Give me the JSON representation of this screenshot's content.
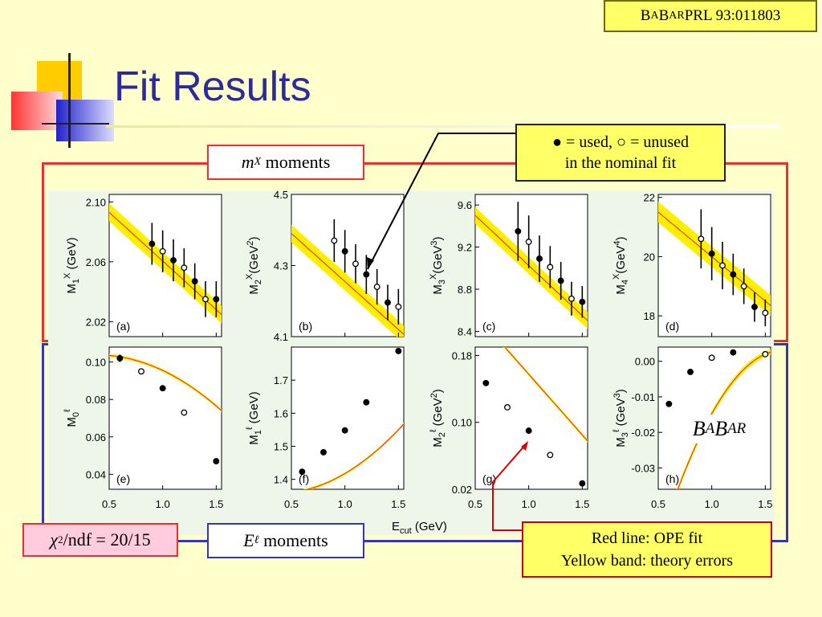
{
  "header": {
    "ref_pre": "B",
    "ref_sc1": "A",
    "ref_mid": "B",
    "ref_sc2": "AR",
    "ref_post": " PRL 93:011803",
    "title": "Fit Results"
  },
  "boxes": {
    "mx_label_var": "m",
    "mx_label_sub": "X",
    "mx_label_text": " moments",
    "el_label_var": "E",
    "el_label_sub": "ℓ",
    "el_label_text": " moments",
    "chi2_sym": "χ",
    "chi2_sup": "2",
    "chi2_text": "/ndf = 20/15",
    "legend_line1": "● = used, ○ = unused",
    "legend_line2": "in the nominal fit",
    "note_line1": "Red line: OPE fit",
    "note_line2": "Yellow band: theory errors",
    "babar_b1": "B",
    "babar_a": "A",
    "babar_b2": "B",
    "babar_ar": "AR"
  },
  "colors": {
    "fit_line": "#ee2222",
    "band": "#ffee00",
    "frame_red": "#e83030",
    "frame_blue": "#3535b5",
    "title": "#2b2b9e"
  },
  "xaxis": {
    "label": "E",
    "label_sub": "cut",
    "label_unit": " (GeV)",
    "ticks": [
      "0.5",
      "1.0",
      "1.5"
    ]
  },
  "chart_data": [
    {
      "id": "a",
      "type": "scatter",
      "panel": "(a)",
      "ylabel_main": "M",
      "ylabel_sub": "1",
      "ylabel_sup": "X",
      "ylabel_unit": " (GeV)",
      "ylabel_unit_sup": "",
      "yticks": [
        "2.10",
        "2.06",
        "2.02"
      ],
      "ytick_vals": [
        2.1,
        2.06,
        2.02
      ],
      "ylim": [
        2.01,
        2.105
      ],
      "xlim": [
        0.5,
        1.55
      ],
      "points": [
        [
          0.9,
          2.072,
          1,
          0.014
        ],
        [
          1.0,
          2.067,
          0,
          0.014
        ],
        [
          1.1,
          2.061,
          1,
          0.014
        ],
        [
          1.2,
          2.056,
          0,
          0.013
        ],
        [
          1.3,
          2.047,
          1,
          0.012
        ],
        [
          1.4,
          2.035,
          0,
          0.012
        ],
        [
          1.5,
          2.035,
          1,
          0.012
        ]
      ],
      "fit": [
        2.093,
        -0.065
      ],
      "band_half": 0.006
    },
    {
      "id": "b",
      "type": "scatter",
      "panel": "(b)",
      "ylabel_main": "M",
      "ylabel_sub": "2",
      "ylabel_sup": "X",
      "ylabel_unit": "(GeV",
      "ylabel_unit_sup": "2",
      "yticks": [
        "4.5",
        "4.3",
        "4.1"
      ],
      "ytick_vals": [
        4.5,
        4.3,
        4.1
      ],
      "ylim": [
        4.1,
        4.5
      ],
      "xlim": [
        0.5,
        1.55
      ],
      "points": [
        [
          0.9,
          4.37,
          0,
          0.06
        ],
        [
          1.0,
          4.34,
          1,
          0.06
        ],
        [
          1.1,
          4.305,
          0,
          0.055
        ],
        [
          1.2,
          4.275,
          1,
          0.055
        ],
        [
          1.3,
          4.24,
          0,
          0.05
        ],
        [
          1.4,
          4.196,
          1,
          0.05
        ],
        [
          1.5,
          4.184,
          0,
          0.05
        ]
      ],
      "fit": [
        4.39,
        -0.27
      ],
      "band_half": 0.025
    },
    {
      "id": "c",
      "type": "scatter",
      "panel": "(c)",
      "ylabel_main": "M",
      "ylabel_sub": "3",
      "ylabel_sup": "X",
      "ylabel_unit": "(GeV",
      "ylabel_unit_sup": "3",
      "yticks": [
        "9.6",
        "9.2",
        "8.8",
        "8.4"
      ],
      "ytick_vals": [
        9.6,
        9.2,
        8.8,
        8.4
      ],
      "ylim": [
        8.35,
        9.7
      ],
      "xlim": [
        0.5,
        1.55
      ],
      "points": [
        [
          0.9,
          9.35,
          1,
          0.28
        ],
        [
          1.0,
          9.25,
          0,
          0.25
        ],
        [
          1.1,
          9.09,
          1,
          0.22
        ],
        [
          1.2,
          9.01,
          0,
          0.2
        ],
        [
          1.3,
          8.88,
          1,
          0.18
        ],
        [
          1.4,
          8.71,
          0,
          0.16
        ],
        [
          1.5,
          8.68,
          1,
          0.15
        ]
      ],
      "fit": [
        9.5,
        -0.95
      ],
      "band_half": 0.08
    },
    {
      "id": "d",
      "type": "scatter",
      "panel": "(d)",
      "ylabel_main": "M",
      "ylabel_sub": "4",
      "ylabel_sup": "X",
      "ylabel_unit": "(GeV",
      "ylabel_unit_sup": "4",
      "yticks": [
        "22",
        "20",
        "18"
      ],
      "ytick_vals": [
        22,
        20,
        18
      ],
      "ylim": [
        17.3,
        22.1
      ],
      "xlim": [
        0.5,
        1.55
      ],
      "points": [
        [
          0.9,
          20.6,
          0,
          1.0
        ],
        [
          1.0,
          20.1,
          1,
          0.9
        ],
        [
          1.1,
          19.7,
          0,
          0.8
        ],
        [
          1.2,
          19.4,
          1,
          0.7
        ],
        [
          1.3,
          19.0,
          0,
          0.6
        ],
        [
          1.4,
          18.3,
          1,
          0.5
        ],
        [
          1.5,
          18.1,
          0,
          0.45
        ]
      ],
      "fit": [
        21.5,
        -3.0
      ],
      "band_half": 0.35
    },
    {
      "id": "e",
      "type": "scatter",
      "panel": "(e)",
      "ylabel_main": "M",
      "ylabel_sub": "0",
      "ylabel_sup": "ℓ",
      "ylabel_unit": "",
      "ylabel_unit_sup": "",
      "yticks": [
        "0.10",
        "0.08",
        "0.06",
        "0.04"
      ],
      "ytick_vals": [
        0.1,
        0.08,
        0.06,
        0.04
      ],
      "ylim": [
        0.032,
        0.108
      ],
      "xlim": [
        0.5,
        1.55
      ],
      "points": [
        [
          0.6,
          0.102,
          1,
          0.002
        ],
        [
          0.8,
          0.095,
          0,
          0.001
        ],
        [
          1.0,
          0.086,
          1,
          0.001
        ],
        [
          1.2,
          0.073,
          0,
          0.001
        ],
        [
          1.5,
          0.047,
          1,
          0.001
        ]
      ],
      "fit": [
        0.1035,
        -0.005,
        -0.022
      ],
      "band_half": 0.0008
    },
    {
      "id": "f",
      "type": "scatter",
      "panel": "(f)",
      "ylabel_main": "M",
      "ylabel_sub": "1",
      "ylabel_sup": "ℓ",
      "ylabel_unit": " (GeV)",
      "ylabel_unit_sup": "",
      "yticks": [
        "1.7",
        "1.6",
        "1.5",
        "1.4"
      ],
      "ytick_vals": [
        1.7,
        1.6,
        1.5,
        1.4
      ],
      "ylim": [
        1.37,
        1.8
      ],
      "xlim": [
        0.5,
        1.55
      ],
      "points": [
        [
          0.6,
          1.423,
          1,
          0.004
        ],
        [
          0.8,
          1.482,
          1,
          0.004
        ],
        [
          1.0,
          1.548,
          1,
          0.004
        ],
        [
          1.2,
          1.633,
          1,
          0.004
        ],
        [
          1.5,
          1.788,
          1,
          0.005
        ]
      ],
      "fit": [
        1.36,
        0.04,
        0.15
      ],
      "band_half": 0.004
    },
    {
      "id": "g",
      "type": "scatter",
      "panel": "(g)",
      "ylabel_main": "M",
      "ylabel_sub": "2",
      "ylabel_sup": "ℓ",
      "ylabel_unit": " (GeV",
      "ylabel_unit_sup": "2",
      "yticks": [
        "0.18",
        "0.10",
        "0.02"
      ],
      "ytick_vals": [
        0.18,
        0.1,
        0.02
      ],
      "ylim": [
        0.02,
        0.19
      ],
      "xlim": [
        0.5,
        1.55
      ],
      "points": [
        [
          0.6,
          0.147,
          1,
          0.003
        ],
        [
          0.8,
          0.118,
          0,
          0.002
        ],
        [
          1.0,
          0.09,
          1,
          0.002
        ],
        [
          1.2,
          0.061,
          0,
          0.002
        ],
        [
          1.5,
          0.027,
          1,
          0.002
        ]
      ],
      "fit": [
        0.23,
        -0.145,
        0.0
      ],
      "band_half": 0.002
    },
    {
      "id": "h",
      "type": "scatter",
      "panel": "(h)",
      "ylabel_main": "M",
      "ylabel_sub": "3",
      "ylabel_sup": "ℓ",
      "ylabel_unit": " (GeV",
      "ylabel_unit_sup": "3",
      "yticks": [
        "0.00",
        "-0.01",
        "-0.02",
        "-0.03"
      ],
      "ytick_vals": [
        0.0,
        -0.01,
        -0.02,
        -0.03
      ],
      "ylim": [
        -0.036,
        0.004
      ],
      "xlim": [
        0.5,
        1.55
      ],
      "points": [
        [
          0.6,
          -0.012,
          1,
          0.0007
        ],
        [
          0.8,
          -0.003,
          1,
          0.0006
        ],
        [
          1.0,
          0.001,
          0,
          0.0006
        ],
        [
          1.2,
          0.0025,
          1,
          0.0006
        ],
        [
          1.5,
          0.002,
          0,
          0.0006
        ]
      ],
      "fit": [
        -0.052,
        0.095,
        -0.041
      ],
      "band_half": 0.0008
    }
  ]
}
